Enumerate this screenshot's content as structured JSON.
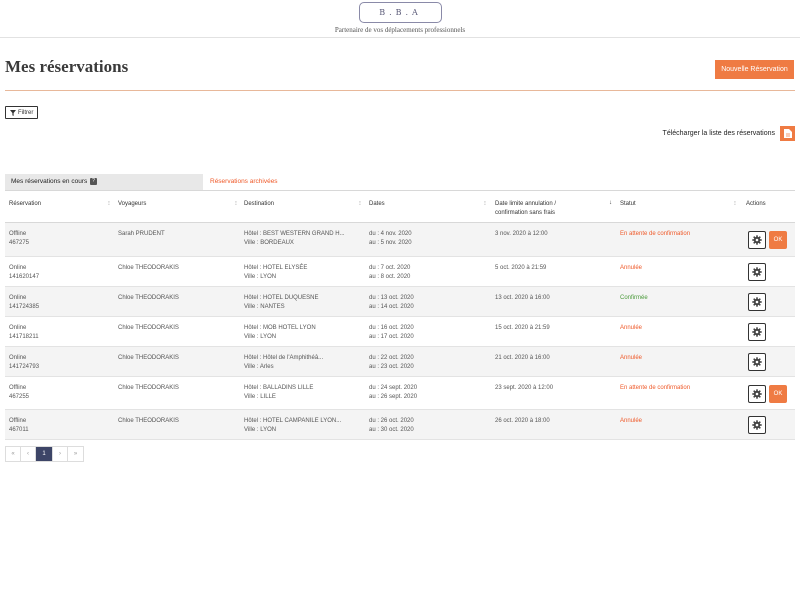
{
  "header": {
    "logo_text": "B.B.A",
    "tagline": "Partenaire de vos déplacements professionnels"
  },
  "page": {
    "title": "Mes réservations",
    "new_button": "Nouvelle Réservation"
  },
  "toolbar": {
    "filter_label": "Filtrer",
    "download_label": "Télécharger la liste des réservations"
  },
  "tabs": [
    {
      "label": "Mes réservations en cours",
      "help": "?",
      "active": true
    },
    {
      "label": "Réservations archivées",
      "active": false
    }
  ],
  "columns": [
    "Réservation",
    "Voyageurs",
    "Destination",
    "Dates",
    "Date limite annulation / confirmation sans frais",
    "Statut",
    "Actions"
  ],
  "rows": [
    {
      "type": "Offline",
      "id": "467275",
      "traveler": "Sarah PRUDENT",
      "hotel": "Hôtel : BEST WESTERN GRAND H...",
      "city": "Ville : BORDEAUX",
      "from": "du : 4 nov. 2020",
      "to": "au : 5 nov. 2020",
      "deadline": "3 nov. 2020 à 12:00",
      "status": "En attente de confirmation",
      "status_kind": "pending",
      "ok": "OK"
    },
    {
      "type": "Online",
      "id": "141620147",
      "traveler": "Chloe THEODORAKIS",
      "hotel": "Hôtel : HOTEL ELYSÉE",
      "city": "Ville : LYON",
      "from": "du : 7 oct. 2020",
      "to": "au : 8 oct. 2020",
      "deadline": "5 oct. 2020 à 21:59",
      "status": "Annulée",
      "status_kind": "cancel",
      "ok": null
    },
    {
      "type": "Online",
      "id": "141724385",
      "traveler": "Chloe THEODORAKIS",
      "hotel": "Hôtel : HOTEL DUQUESNE",
      "city": "Ville : NANTES",
      "from": "du : 13 oct. 2020",
      "to": "au : 14 oct. 2020",
      "deadline": "13 oct. 2020 à 16:00",
      "status": "Confirmée",
      "status_kind": "ok",
      "ok": null
    },
    {
      "type": "Online",
      "id": "141718211",
      "traveler": "Chloe THEODORAKIS",
      "hotel": "Hôtel : MOB HOTEL LYON",
      "city": "Ville : LYON",
      "from": "du : 16 oct. 2020",
      "to": "au : 17 oct. 2020",
      "deadline": "15 oct. 2020 à 21:59",
      "status": "Annulée",
      "status_kind": "cancel",
      "ok": null
    },
    {
      "type": "Online",
      "id": "141724793",
      "traveler": "Chloe THEODORAKIS",
      "hotel": "Hôtel : Hôtel de l'Amphithéâ...",
      "city": "Ville : Arles",
      "from": "du : 22 oct. 2020",
      "to": "au : 23 oct. 2020",
      "deadline": "21 oct. 2020 à 16:00",
      "status": "Annulée",
      "status_kind": "cancel",
      "ok": null
    },
    {
      "type": "Offline",
      "id": "467255",
      "traveler": "Chloe THEODORAKIS",
      "hotel": "Hôtel : BALLADINS LILLE",
      "city": "Ville : LILLE",
      "from": "du : 24 sept. 2020",
      "to": "au : 26 sept. 2020",
      "deadline": "23 sept. 2020 à 12:00",
      "status": "En attente de confirmation",
      "status_kind": "pending",
      "ok": "OK"
    },
    {
      "type": "Offline",
      "id": "467011",
      "traveler": "Chloe THEODORAKIS",
      "hotel": "Hôtel : HOTEL CAMPANILE LYON...",
      "city": "Ville : LYON",
      "from": "du : 26 oct. 2020",
      "to": "au : 30 oct. 2020",
      "deadline": "26 oct. 2020 à 18:00",
      "status": "Annulée",
      "status_kind": "cancel",
      "ok": null
    }
  ],
  "pagination": {
    "first": "«",
    "prev": "‹",
    "current": "1",
    "next": "›",
    "last": "»"
  },
  "colors": {
    "accent": "#ef7b43",
    "cancel": "#ef5a2a",
    "confirmed": "#4a9a3a",
    "page_active": "#3d4567"
  },
  "icons": {
    "filter": "filter-icon",
    "download": "file-download-icon",
    "action": "gear-icon"
  }
}
